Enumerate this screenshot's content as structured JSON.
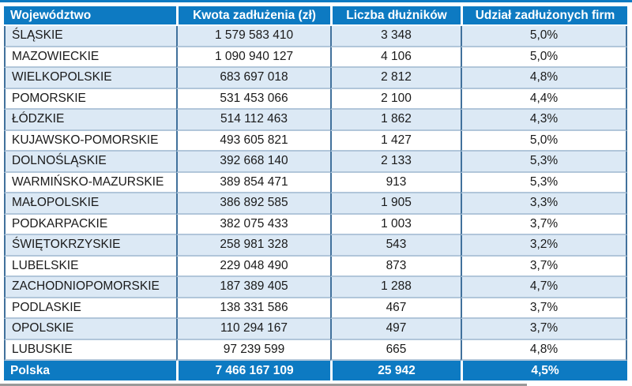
{
  "theme": {
    "header_blue": "#0d7ac2",
    "row_alt": "#dce9f5",
    "divider_dark": "#41719c",
    "divider_light": "#b1c6da",
    "text_dark": "#1a1a1a",
    "shadow_gray": "#9a9a9a"
  },
  "chart_data": {
    "type": "table",
    "columns": [
      "Województwo",
      "Kwota zadłużenia (zł)",
      "Liczba dłużników",
      "Udział zadłużonych firm"
    ],
    "rows": [
      {
        "wojewodztwo": "ŚLĄSKIE",
        "kwota": "1 579 583 410",
        "liczba": "3 348",
        "udzial": "5,0%"
      },
      {
        "wojewodztwo": "MAZOWIECKIE",
        "kwota": "1 090 940 127",
        "liczba": "4 106",
        "udzial": "5,0%"
      },
      {
        "wojewodztwo": "WIELKOPOLSKIE",
        "kwota": "683 697 018",
        "liczba": "2 812",
        "udzial": "4,8%"
      },
      {
        "wojewodztwo": "POMORSKIE",
        "kwota": "531 453 066",
        "liczba": "2 100",
        "udzial": "4,4%"
      },
      {
        "wojewodztwo": "ŁÓDZKIE",
        "kwota": "514 112 463",
        "liczba": "1 862",
        "udzial": "4,3%"
      },
      {
        "wojewodztwo": "KUJAWSKO-POMORSKIE",
        "kwota": "493 605 821",
        "liczba": "1 427",
        "udzial": "5,0%"
      },
      {
        "wojewodztwo": "DOLNOŚLĄSKIE",
        "kwota": "392 668 140",
        "liczba": "2 133",
        "udzial": "5,3%"
      },
      {
        "wojewodztwo": "WARMIŃSKO-MAZURSKIE",
        "kwota": "389 854 471",
        "liczba": "913",
        "udzial": "5,3%"
      },
      {
        "wojewodztwo": "MAŁOPOLSKIE",
        "kwota": "386 892 585",
        "liczba": "1 905",
        "udzial": "3,3%"
      },
      {
        "wojewodztwo": "PODKARPACKIE",
        "kwota": "382 075 433",
        "liczba": "1 003",
        "udzial": "3,7%"
      },
      {
        "wojewodztwo": "ŚWIĘTOKRZYSKIE",
        "kwota": "258 981 328",
        "liczba": "543",
        "udzial": "3,2%"
      },
      {
        "wojewodztwo": "LUBELSKIE",
        "kwota": "229 048 490",
        "liczba": "873",
        "udzial": "3,7%"
      },
      {
        "wojewodztwo": "ZACHODNIOPOMORSKIE",
        "kwota": "187 389 405",
        "liczba": "1 288",
        "udzial": "4,7%"
      },
      {
        "wojewodztwo": "PODLASKIE",
        "kwota": "138 331 586",
        "liczba": "467",
        "udzial": "3,7%"
      },
      {
        "wojewodztwo": "OPOLSKIE",
        "kwota": "110 294 167",
        "liczba": "497",
        "udzial": "3,7%"
      },
      {
        "wojewodztwo": "LUBUSKIE",
        "kwota": "97 239 599",
        "liczba": "665",
        "udzial": "4,8%"
      }
    ],
    "total": {
      "wojewodztwo": "Polska",
      "kwota": "7 466 167 109",
      "liczba": "25 942",
      "udzial": "4,5%"
    }
  }
}
